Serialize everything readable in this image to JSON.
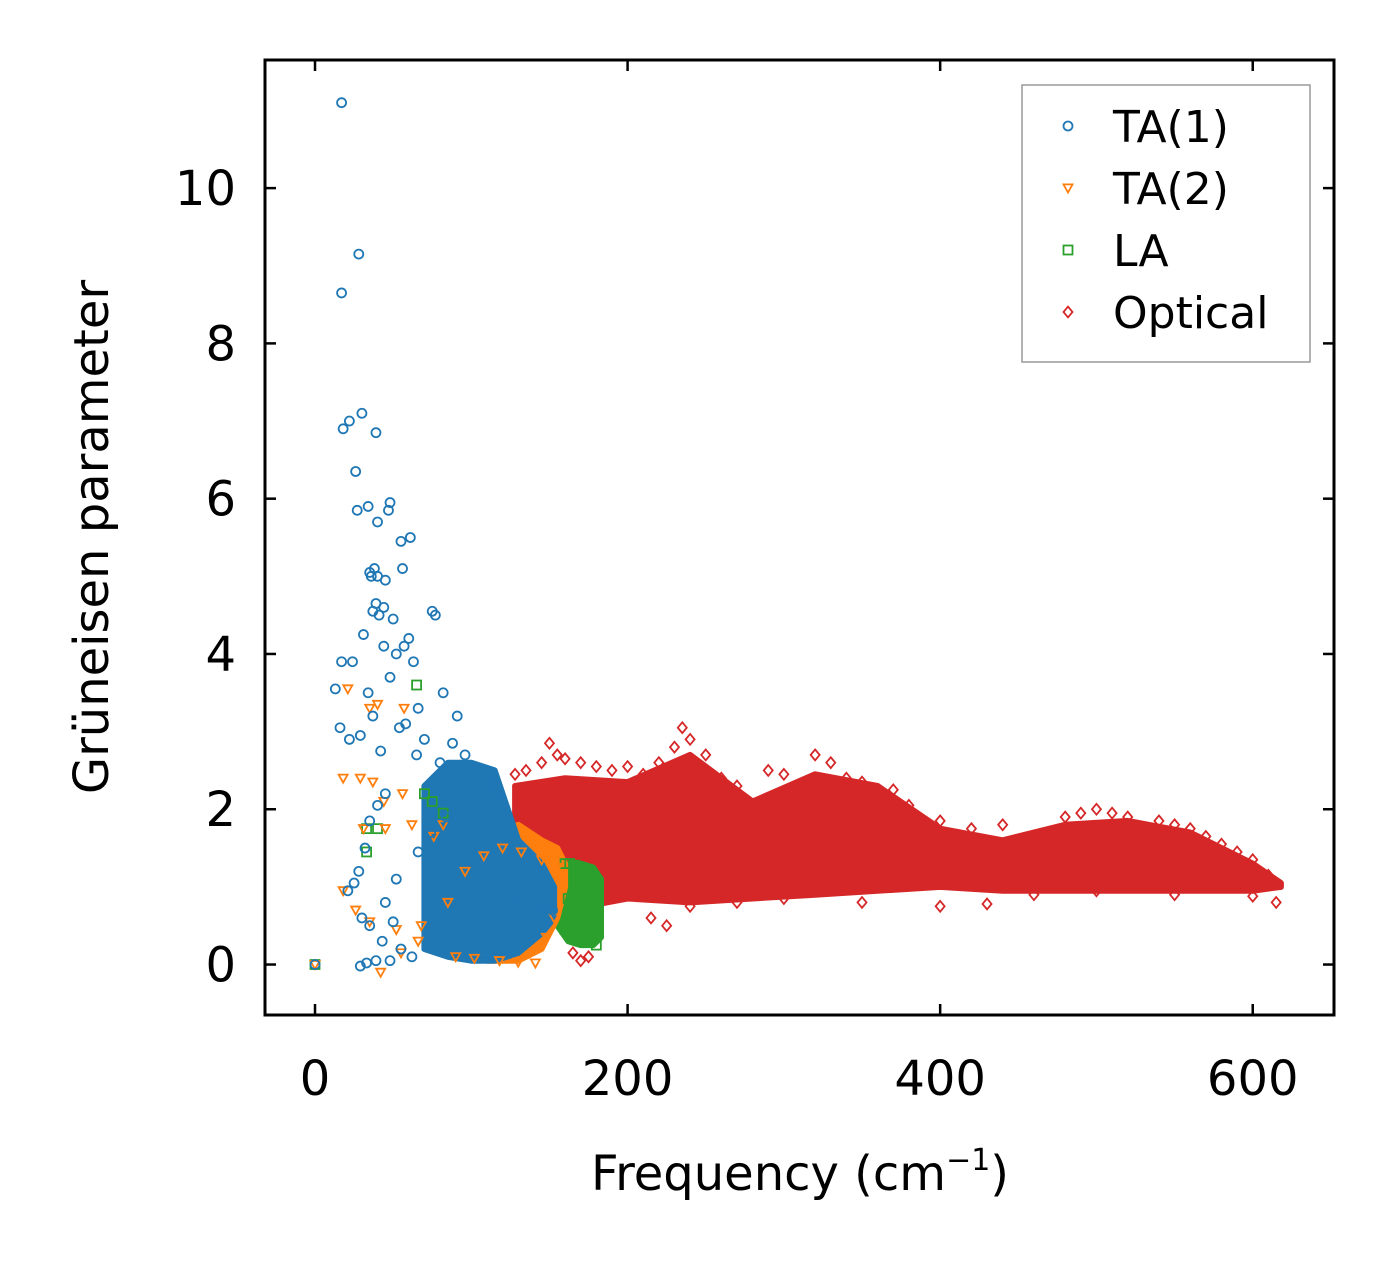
{
  "chart_data": {
    "type": "scatter",
    "xlabel": "Frequency (cm",
    "xlabel_sup": "−1",
    "xlabel_close": ")",
    "ylabel": "Grüneisen parameter",
    "xlim": [
      -32,
      652
    ],
    "ylim": [
      -0.65,
      11.65
    ],
    "xticks": [
      0,
      200,
      400,
      600
    ],
    "xtick_labels": [
      "0",
      "200",
      "400",
      "600"
    ],
    "yticks": [
      0,
      2,
      4,
      6,
      8,
      10
    ],
    "ytick_labels": [
      "0",
      "2",
      "4",
      "6",
      "8",
      "10"
    ],
    "grid": false,
    "legend_position": "top-right",
    "series": [
      {
        "name": "TA(1)",
        "marker": "circle",
        "color": "#1f77b4",
        "x": [
          0,
          17,
          28,
          17,
          30,
          18,
          22,
          39,
          26,
          27,
          34,
          48,
          47,
          40,
          35,
          55,
          61,
          38,
          40,
          45,
          39,
          44,
          37,
          56,
          36,
          41,
          50,
          75,
          77,
          60,
          44,
          52,
          31,
          57,
          63,
          48,
          34,
          37,
          17,
          24,
          13,
          16,
          22,
          29,
          42,
          54,
          66,
          82,
          91,
          88,
          96,
          104,
          110,
          112,
          118,
          70,
          65,
          58,
          80,
          86,
          45,
          40,
          35,
          32,
          28,
          25,
          21,
          30,
          35,
          50,
          43,
          55,
          62,
          48,
          39,
          33,
          29,
          45,
          52,
          66,
          74,
          84,
          95,
          100,
          108,
          115,
          120,
          124,
          130,
          134,
          140,
          145,
          152
        ],
        "y": [
          0,
          11.1,
          9.15,
          8.65,
          7.1,
          6.9,
          7.0,
          6.85,
          6.35,
          5.85,
          5.9,
          5.95,
          5.85,
          5.7,
          5.05,
          5.45,
          5.5,
          5.1,
          5.0,
          4.95,
          4.65,
          4.6,
          4.55,
          5.1,
          5.0,
          4.5,
          4.45,
          4.55,
          4.5,
          4.2,
          4.1,
          4.0,
          4.25,
          4.1,
          3.9,
          3.7,
          3.5,
          3.2,
          3.9,
          3.9,
          3.55,
          3.05,
          2.9,
          2.95,
          2.75,
          3.05,
          3.3,
          3.5,
          3.2,
          2.85,
          2.7,
          2.5,
          2.35,
          2.3,
          2.15,
          2.9,
          2.7,
          3.1,
          2.6,
          2.4,
          2.2,
          2.05,
          1.85,
          1.5,
          1.2,
          1.05,
          0.95,
          0.6,
          0.5,
          0.55,
          0.3,
          0.2,
          0.1,
          0.05,
          0.05,
          0.02,
          -0.02,
          0.8,
          1.1,
          1.45,
          1.7,
          1.9,
          1.6,
          1.35,
          1.15,
          1.0,
          0.9,
          0.85,
          0.8,
          0.78,
          0.75,
          0.72,
          0.7
        ]
      },
      {
        "name": "TA(2)",
        "marker": "triangle-down",
        "color": "#ff7f0e",
        "x": [
          0,
          21,
          35,
          40,
          57,
          18,
          29,
          37,
          44,
          56,
          31,
          45,
          62,
          76,
          82,
          18,
          26,
          35,
          52,
          66,
          90,
          102,
          118,
          130,
          141,
          148,
          153,
          158,
          42,
          55,
          68,
          85,
          96,
          108,
          120,
          132,
          145,
          155
        ],
        "y": [
          0,
          3.55,
          3.3,
          3.35,
          3.3,
          2.4,
          2.4,
          2.35,
          2.1,
          2.2,
          1.75,
          1.75,
          1.8,
          1.65,
          1.8,
          0.95,
          0.7,
          0.55,
          0.45,
          0.3,
          0.1,
          0.08,
          0.05,
          0.03,
          0.02,
          0.35,
          0.6,
          1.1,
          -0.1,
          0.15,
          0.5,
          0.8,
          1.2,
          1.4,
          1.5,
          1.45,
          1.35,
          1.25
        ]
      },
      {
        "name": "LA",
        "marker": "square",
        "color": "#2ca02c",
        "x": [
          0,
          33,
          33,
          40,
          65,
          70,
          75,
          82,
          160,
          163,
          166,
          169,
          172,
          175,
          178,
          180,
          160,
          165,
          170,
          175,
          180,
          162,
          168,
          174,
          179
        ],
        "y": [
          0,
          1.75,
          1.45,
          1.75,
          3.6,
          2.2,
          2.1,
          1.95,
          1.3,
          1.3,
          1.28,
          1.25,
          1.2,
          1.15,
          1.1,
          1.05,
          0.45,
          0.4,
          0.35,
          0.3,
          0.25,
          0.85,
          0.8,
          0.75,
          0.7
        ]
      },
      {
        "name": "Optical",
        "marker": "diamond",
        "color": "#d62728",
        "x": [
          128,
          135,
          145,
          150,
          155,
          160,
          170,
          180,
          190,
          200,
          210,
          220,
          230,
          235,
          240,
          250,
          260,
          270,
          290,
          300,
          320,
          330,
          340,
          350,
          370,
          380,
          400,
          420,
          440,
          460,
          480,
          490,
          500,
          510,
          520,
          540,
          550,
          560,
          570,
          580,
          590,
          600,
          610,
          615,
          165,
          170,
          175,
          215,
          225,
          240,
          270,
          300,
          350,
          400,
          430,
          460,
          500,
          550,
          600
        ],
        "y": [
          2.45,
          2.5,
          2.6,
          2.85,
          2.7,
          2.65,
          2.6,
          2.55,
          2.5,
          2.55,
          2.45,
          2.6,
          2.8,
          3.05,
          2.9,
          2.7,
          2.4,
          2.3,
          2.5,
          2.45,
          2.7,
          2.6,
          2.4,
          2.35,
          2.25,
          2.05,
          1.85,
          1.75,
          1.8,
          1.65,
          1.9,
          1.95,
          2.0,
          1.95,
          1.9,
          1.85,
          1.8,
          1.75,
          1.65,
          1.55,
          1.45,
          1.35,
          1.15,
          0.8,
          0.15,
          0.05,
          0.1,
          0.6,
          0.5,
          0.75,
          0.8,
          0.85,
          0.8,
          0.75,
          0.78,
          0.9,
          0.95,
          0.9,
          0.88
        ]
      }
    ],
    "dense_regions": [
      {
        "series": "Optical",
        "x": [
          128,
          160,
          200,
          240,
          280,
          320,
          360,
          400,
          440,
          480,
          520,
          560,
          600,
          618
        ],
        "lo": [
          0.55,
          0.7,
          0.85,
          0.8,
          0.85,
          0.9,
          0.95,
          1.0,
          0.95,
          0.95,
          0.95,
          0.95,
          0.95,
          1.0
        ],
        "hi": [
          2.3,
          2.4,
          2.35,
          2.7,
          2.1,
          2.45,
          2.3,
          1.75,
          1.6,
          1.8,
          1.85,
          1.7,
          1.3,
          1.05
        ]
      },
      {
        "series": "LA",
        "x": [
          155,
          162,
          170,
          178,
          183
        ],
        "lo": [
          0.5,
          0.3,
          0.25,
          0.25,
          0.35
        ],
        "hi": [
          1.2,
          1.3,
          1.3,
          1.25,
          1.1
        ]
      },
      {
        "series": "TA(2)",
        "x": [
          90,
          110,
          130,
          145,
          155,
          160
        ],
        "lo": [
          0.1,
          0.05,
          0.05,
          0.2,
          0.6,
          1.0
        ],
        "hi": [
          1.4,
          1.6,
          1.8,
          1.6,
          1.5,
          1.3
        ]
      },
      {
        "series": "TA(1)",
        "x": [
          70,
          85,
          100,
          115,
          130,
          145,
          153
        ],
        "lo": [
          0.2,
          0.1,
          0.05,
          0.05,
          0.15,
          0.4,
          0.6
        ],
        "hi": [
          2.3,
          2.6,
          2.6,
          2.5,
          1.6,
          1.3,
          1.0
        ]
      }
    ]
  }
}
